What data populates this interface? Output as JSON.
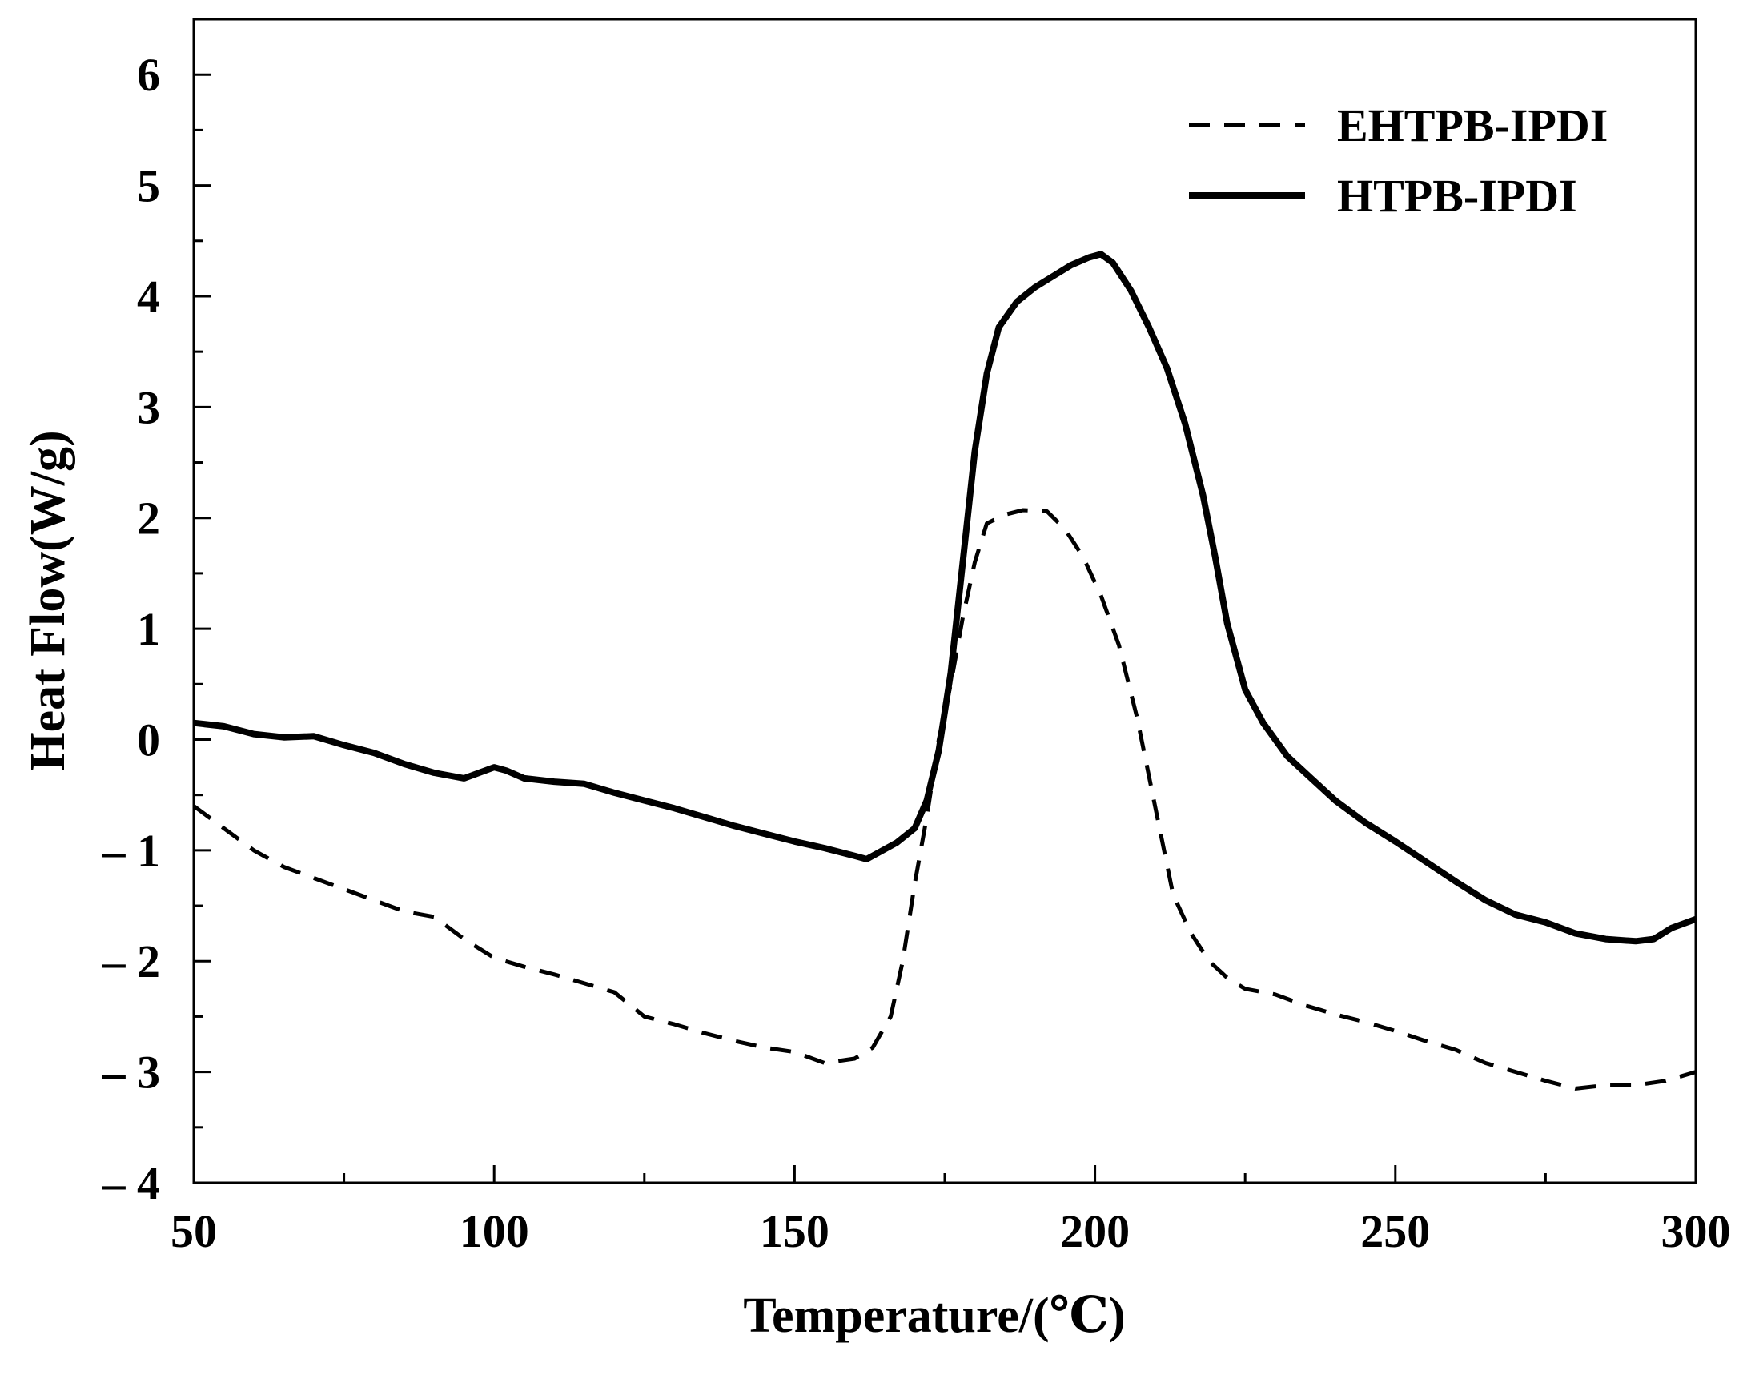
{
  "chart_data": {
    "type": "line",
    "title": "",
    "xlabel": "Temperature/(℃)",
    "ylabel": "Heat Flow(W/g)",
    "xlim": [
      50,
      300
    ],
    "ylim": [
      -4,
      6.5
    ],
    "x_ticks": [
      50,
      100,
      150,
      200,
      250,
      300
    ],
    "x_tick_labels": [
      "50",
      "100",
      "150",
      "200",
      "250",
      "300"
    ],
    "y_ticks": [
      -4,
      -3,
      -2,
      -1,
      0,
      1,
      2,
      3,
      4,
      5,
      6
    ],
    "y_tick_labels": [
      "– 4",
      "– 3",
      "– 2",
      "– 1",
      "0",
      "1",
      "2",
      "3",
      "4",
      "5",
      "6"
    ],
    "grid": false,
    "legend_position": "top-right",
    "series": [
      {
        "name": "EHTPB-IPDI",
        "style": "dashed",
        "color": "#000000",
        "points": [
          [
            50,
            -0.6
          ],
          [
            55,
            -0.8
          ],
          [
            60,
            -1.0
          ],
          [
            65,
            -1.15
          ],
          [
            70,
            -1.25
          ],
          [
            75,
            -1.35
          ],
          [
            80,
            -1.45
          ],
          [
            85,
            -1.55
          ],
          [
            90,
            -1.6
          ],
          [
            95,
            -1.8
          ],
          [
            100,
            -1.97
          ],
          [
            105,
            -2.05
          ],
          [
            110,
            -2.12
          ],
          [
            115,
            -2.2
          ],
          [
            120,
            -2.28
          ],
          [
            125,
            -2.5
          ],
          [
            130,
            -2.57
          ],
          [
            135,
            -2.65
          ],
          [
            140,
            -2.72
          ],
          [
            145,
            -2.78
          ],
          [
            150,
            -2.82
          ],
          [
            155,
            -2.92
          ],
          [
            160,
            -2.88
          ],
          [
            163,
            -2.78
          ],
          [
            166,
            -2.5
          ],
          [
            168,
            -2.0
          ],
          [
            170,
            -1.3
          ],
          [
            172,
            -0.7
          ],
          [
            174,
            0.0
          ],
          [
            176,
            0.5
          ],
          [
            178,
            1.1
          ],
          [
            180,
            1.6
          ],
          [
            182,
            1.95
          ],
          [
            185,
            2.03
          ],
          [
            188,
            2.07
          ],
          [
            192,
            2.06
          ],
          [
            195,
            1.9
          ],
          [
            198,
            1.65
          ],
          [
            201,
            1.3
          ],
          [
            204,
            0.85
          ],
          [
            207,
            0.2
          ],
          [
            210,
            -0.6
          ],
          [
            213,
            -1.4
          ],
          [
            216,
            -1.75
          ],
          [
            219,
            -2.0
          ],
          [
            222,
            -2.15
          ],
          [
            225,
            -2.25
          ],
          [
            230,
            -2.3
          ],
          [
            235,
            -2.4
          ],
          [
            240,
            -2.48
          ],
          [
            245,
            -2.55
          ],
          [
            250,
            -2.63
          ],
          [
            255,
            -2.72
          ],
          [
            260,
            -2.8
          ],
          [
            265,
            -2.92
          ],
          [
            270,
            -3.0
          ],
          [
            275,
            -3.08
          ],
          [
            280,
            -3.15
          ],
          [
            285,
            -3.12
          ],
          [
            290,
            -3.12
          ],
          [
            295,
            -3.08
          ],
          [
            300,
            -3.0
          ]
        ]
      },
      {
        "name": "HTPB-IPDI",
        "style": "solid",
        "color": "#000000",
        "points": [
          [
            50,
            0.15
          ],
          [
            55,
            0.12
          ],
          [
            60,
            0.05
          ],
          [
            65,
            0.02
          ],
          [
            70,
            0.03
          ],
          [
            75,
            -0.05
          ],
          [
            80,
            -0.12
          ],
          [
            85,
            -0.22
          ],
          [
            90,
            -0.3
          ],
          [
            95,
            -0.35
          ],
          [
            100,
            -0.25
          ],
          [
            102,
            -0.28
          ],
          [
            105,
            -0.35
          ],
          [
            110,
            -0.38
          ],
          [
            115,
            -0.4
          ],
          [
            120,
            -0.48
          ],
          [
            125,
            -0.55
          ],
          [
            130,
            -0.62
          ],
          [
            135,
            -0.7
          ],
          [
            140,
            -0.78
          ],
          [
            145,
            -0.85
          ],
          [
            150,
            -0.92
          ],
          [
            155,
            -0.98
          ],
          [
            160,
            -1.05
          ],
          [
            162,
            -1.08
          ],
          [
            164,
            -1.02
          ],
          [
            167,
            -0.93
          ],
          [
            170,
            -0.8
          ],
          [
            172,
            -0.55
          ],
          [
            174,
            -0.1
          ],
          [
            176,
            0.6
          ],
          [
            178,
            1.6
          ],
          [
            180,
            2.6
          ],
          [
            182,
            3.3
          ],
          [
            184,
            3.72
          ],
          [
            187,
            3.95
          ],
          [
            190,
            4.08
          ],
          [
            193,
            4.18
          ],
          [
            196,
            4.28
          ],
          [
            199,
            4.35
          ],
          [
            201,
            4.38
          ],
          [
            203,
            4.3
          ],
          [
            206,
            4.05
          ],
          [
            209,
            3.72
          ],
          [
            212,
            3.35
          ],
          [
            215,
            2.85
          ],
          [
            218,
            2.2
          ],
          [
            220,
            1.65
          ],
          [
            222,
            1.05
          ],
          [
            225,
            0.45
          ],
          [
            228,
            0.15
          ],
          [
            232,
            -0.15
          ],
          [
            236,
            -0.35
          ],
          [
            240,
            -0.55
          ],
          [
            245,
            -0.75
          ],
          [
            250,
            -0.92
          ],
          [
            255,
            -1.1
          ],
          [
            260,
            -1.28
          ],
          [
            265,
            -1.45
          ],
          [
            270,
            -1.58
          ],
          [
            275,
            -1.65
          ],
          [
            280,
            -1.75
          ],
          [
            285,
            -1.8
          ],
          [
            290,
            -1.82
          ],
          [
            293,
            -1.8
          ],
          [
            296,
            -1.7
          ],
          [
            300,
            -1.62
          ]
        ]
      }
    ]
  }
}
